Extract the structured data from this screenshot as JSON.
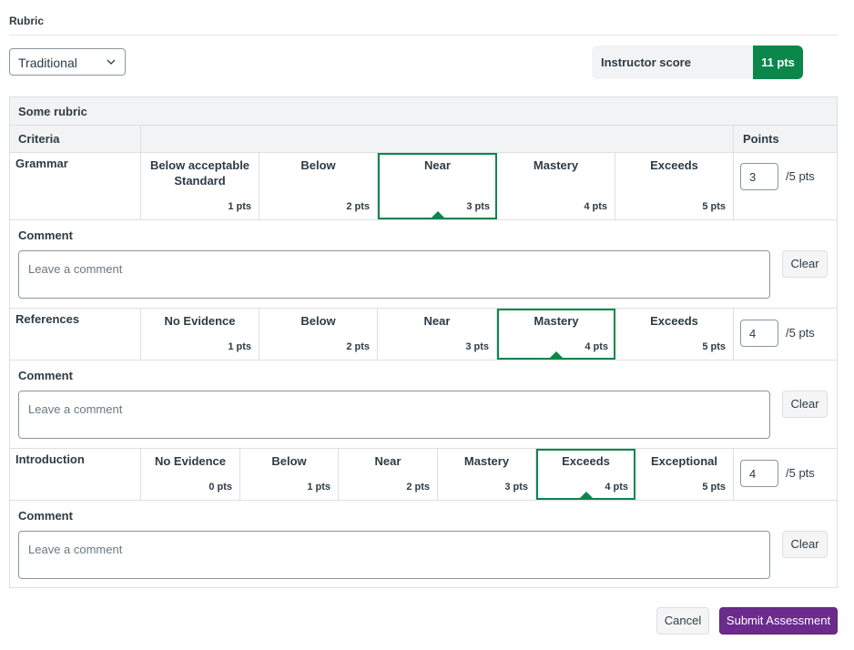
{
  "section_title": "Rubric",
  "view_select": {
    "value": "Traditional",
    "icon": "chevron-down-icon"
  },
  "instructor_score": {
    "label": "Instructor score",
    "value": "11 pts",
    "color": "#0b874b"
  },
  "rubric": {
    "name": "Some rubric",
    "headers": {
      "criteria": "Criteria",
      "points": "Points"
    },
    "criteria": [
      {
        "name": "Grammar",
        "ratings": [
          {
            "title": "Below acceptable Standard",
            "points": "1 pts"
          },
          {
            "title": "Below",
            "points": "2 pts"
          },
          {
            "title": "Near",
            "points": "3 pts"
          },
          {
            "title": "Mastery",
            "points": "4 pts"
          },
          {
            "title": "Exceeds",
            "points": "5 pts"
          }
        ],
        "selected_index": 2,
        "score_value": "3",
        "score_suffix": "/5 pts",
        "comment_label": "Comment",
        "comment_placeholder": "Leave a comment",
        "clear_label": "Clear"
      },
      {
        "name": "References",
        "ratings": [
          {
            "title": "No Evidence",
            "points": "1 pts"
          },
          {
            "title": "Below",
            "points": "2 pts"
          },
          {
            "title": "Near",
            "points": "3 pts"
          },
          {
            "title": "Mastery",
            "points": "4 pts"
          },
          {
            "title": "Exceeds",
            "points": "5 pts"
          }
        ],
        "selected_index": 3,
        "score_value": "4",
        "score_suffix": "/5 pts",
        "comment_label": "Comment",
        "comment_placeholder": "Leave a comment",
        "clear_label": "Clear"
      },
      {
        "name": "Introduction",
        "ratings": [
          {
            "title": "No Evidence",
            "points": "0 pts"
          },
          {
            "title": "Below",
            "points": "1 pts"
          },
          {
            "title": "Near",
            "points": "2 pts"
          },
          {
            "title": "Mastery",
            "points": "3 pts"
          },
          {
            "title": "Exceeds",
            "points": "4 pts"
          },
          {
            "title": "Exceptional",
            "points": "5 pts"
          }
        ],
        "selected_index": 4,
        "score_value": "4",
        "score_suffix": "/5 pts",
        "comment_label": "Comment",
        "comment_placeholder": "Leave a comment",
        "clear_label": "Clear"
      }
    ]
  },
  "actions": {
    "cancel": "Cancel",
    "submit": "Submit Assessment"
  },
  "colors": {
    "selected": "#0b874b",
    "primary_button": "#6b2b8c"
  }
}
